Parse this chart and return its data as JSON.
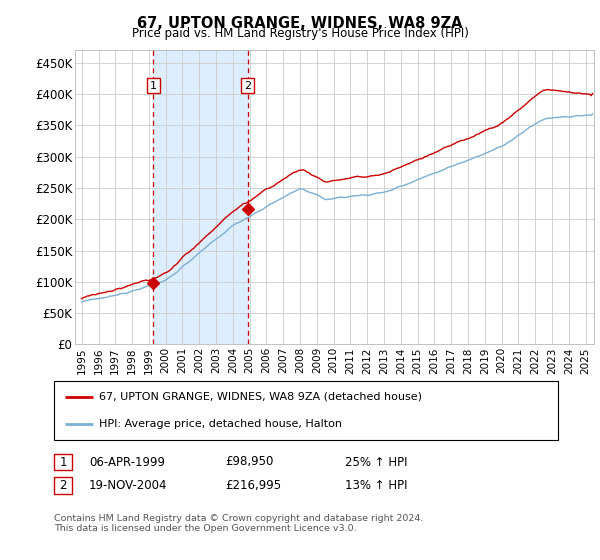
{
  "title": "67, UPTON GRANGE, WIDNES, WA8 9ZA",
  "subtitle": "Price paid vs. HM Land Registry's House Price Index (HPI)",
  "ylim": [
    0,
    470000
  ],
  "yticks": [
    0,
    50000,
    100000,
    150000,
    200000,
    250000,
    300000,
    350000,
    400000,
    450000
  ],
  "ytick_labels": [
    "£0",
    "£50K",
    "£100K",
    "£150K",
    "£200K",
    "£250K",
    "£300K",
    "£350K",
    "£400K",
    "£450K"
  ],
  "sale1_date": 1999.27,
  "sale1_price": 98950,
  "sale1_label": "1",
  "sale1_info": "06-APR-1999",
  "sale1_amount": "£98,950",
  "sale1_hpi": "25% ↑ HPI",
  "sale2_date": 2004.89,
  "sale2_price": 216995,
  "sale2_label": "2",
  "sale2_info": "19-NOV-2004",
  "sale2_amount": "£216,995",
  "sale2_hpi": "13% ↑ HPI",
  "legend_line1": "67, UPTON GRANGE, WIDNES, WA8 9ZA (detached house)",
  "legend_line2": "HPI: Average price, detached house, Halton",
  "footer": "Contains HM Land Registry data © Crown copyright and database right 2024.\nThis data is licensed under the Open Government Licence v3.0.",
  "line_color_red": "#cc0000",
  "line_color_blue": "#7bafd4",
  "shade_color": "#ddeeff",
  "grid_color": "#cccccc",
  "background_color": "#ffffff",
  "xlim_left": 1994.6,
  "xlim_right": 2025.5
}
